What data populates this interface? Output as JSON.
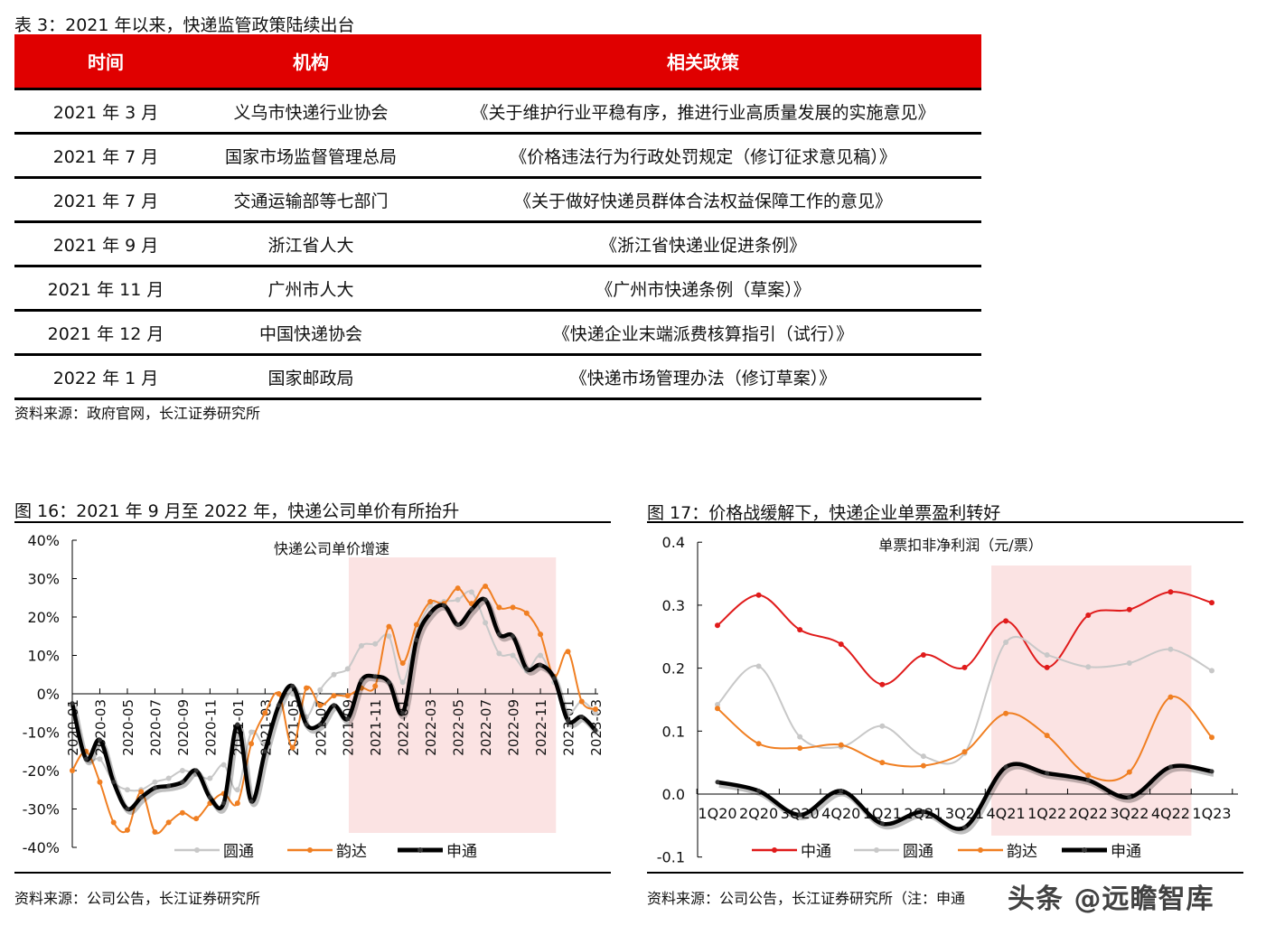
{
  "table": {
    "caption": "表 3：2021 年以来，快递监管政策陆续出台",
    "headers": [
      "时间",
      "机构",
      "相关政策"
    ],
    "rows": [
      {
        "time": "2021 年 3 月",
        "org": "义乌市快递行业协会",
        "policy": "《关于维护行业平稳有序，推进行业高质量发展的实施意见》"
      },
      {
        "time": "2021 年 7 月",
        "org": "国家市场监督管理总局",
        "policy": "《价格违法行为行政处罚规定（修订征求意见稿）》"
      },
      {
        "time": "2021 年 7 月",
        "org": "交通运输部等七部门",
        "policy": "《关于做好快递员群体合法权益保障工作的意见》"
      },
      {
        "time": "2021 年 9 月",
        "org": "浙江省人大",
        "policy": "《浙江省快递业促进条例》"
      },
      {
        "time": "2021 年 11 月",
        "org": "广州市人大",
        "policy": "《广州市快递条例（草案）》"
      },
      {
        "time": "2021 年 12 月",
        "org": "中国快递协会",
        "policy": "《快递企业末端派费核算指引（试行）》"
      },
      {
        "time": "2022 年 1 月",
        "org": "国家邮政局",
        "policy": "《快递市场管理办法（修订草案）》"
      }
    ],
    "source": "资料来源：政府官网，长江证券研究所"
  },
  "figure16": {
    "caption": "图 16：2021 年 9 月至 2022 年，快递公司单价有所抬升",
    "source": "资料来源：公司公告，长江证券研究所"
  },
  "figure17": {
    "caption": "图 17：价格战缓解下，快递企业单票盈利转好",
    "source": "资料来源：公司公告，长江证券研究所（注：申通",
    "watermark": "头条 @远瞻智库"
  },
  "chart_data": [
    {
      "type": "line",
      "title": "快递公司单价增速",
      "xlabel": "",
      "ylabel": "",
      "ylim": [
        -0.4,
        0.4
      ],
      "yticks": [
        "40%",
        "30%",
        "20%",
        "10%",
        "0%",
        "-10%",
        "-20%",
        "-30%",
        "-40%"
      ],
      "x": [
        "2020-01",
        "2020-02",
        "2020-03",
        "2020-04",
        "2020-05",
        "2020-06",
        "2020-07",
        "2020-08",
        "2020-09",
        "2020-10",
        "2020-11",
        "2020-12",
        "2021-01",
        "2021-02",
        "2021-03",
        "2021-04",
        "2021-05",
        "2021-06",
        "2021-07",
        "2021-08",
        "2021-09",
        "2021-10",
        "2021-11",
        "2021-12",
        "2022-01",
        "2022-02",
        "2022-03",
        "2022-04",
        "2022-05",
        "2022-06",
        "2022-07",
        "2022-08",
        "2022-09",
        "2022-10",
        "2022-11",
        "2022-12",
        "2023-01",
        "2023-02",
        "2023-03"
      ],
      "xtick_labels": [
        "2020-01",
        "2020-03",
        "2020-05",
        "2020-07",
        "2020-09",
        "2020-11",
        "2021-01",
        "2021-03",
        "2021-05",
        "2021-07",
        "2021-09",
        "2021-11",
        "2022-01",
        "2022-03",
        "2022-05",
        "2022-07",
        "2022-09",
        "2022-11",
        "2023-01",
        "2023-03"
      ],
      "highlight_range": [
        "2021-10",
        "2022-12"
      ],
      "legend_position": "bottom",
      "series": [
        {
          "name": "圆通",
          "color": "#c8c8c8",
          "values": [
            -0.03,
            -0.17,
            -0.17,
            -0.23,
            -0.25,
            -0.25,
            -0.23,
            -0.22,
            -0.2,
            -0.21,
            -0.22,
            -0.185,
            -0.25,
            -0.1,
            -0.13,
            -0.03,
            0.0,
            -0.06,
            0.01,
            0.05,
            0.065,
            0.125,
            0.13,
            0.15,
            0.03,
            0.16,
            0.23,
            0.24,
            0.245,
            0.265,
            0.185,
            0.105,
            0.1,
            0.06,
            0.1,
            0.03,
            -0.05,
            -0.02,
            -0.05
          ]
        },
        {
          "name": "韵达",
          "color": "#f07f22",
          "values": [
            -0.2,
            -0.15,
            -0.23,
            -0.335,
            -0.355,
            -0.255,
            -0.36,
            -0.335,
            -0.31,
            -0.325,
            -0.285,
            -0.26,
            -0.285,
            -0.13,
            -0.05,
            0.0,
            -0.14,
            0.015,
            -0.03,
            -0.005,
            -0.005,
            0.015,
            0.02,
            0.175,
            0.08,
            0.18,
            0.24,
            0.235,
            0.275,
            0.235,
            0.28,
            0.225,
            0.225,
            0.21,
            0.155,
            0.045,
            0.11,
            -0.02,
            -0.04
          ]
        },
        {
          "name": "申通",
          "color": "#000000",
          "values": [
            -0.025,
            -0.17,
            -0.12,
            -0.23,
            -0.3,
            -0.27,
            -0.245,
            -0.24,
            -0.23,
            -0.2,
            -0.27,
            -0.285,
            -0.08,
            -0.28,
            -0.15,
            -0.03,
            0.02,
            -0.08,
            -0.08,
            -0.03,
            -0.065,
            0.035,
            0.045,
            0.03,
            -0.05,
            0.14,
            0.21,
            0.23,
            0.18,
            0.22,
            0.245,
            0.155,
            0.15,
            0.065,
            0.075,
            0.04,
            -0.07,
            -0.06,
            -0.095
          ]
        }
      ]
    },
    {
      "type": "line",
      "title": "单票扣非净利润（元/票）",
      "xlabel": "",
      "ylabel": "",
      "ylim": [
        -0.1,
        0.4
      ],
      "yticks": [
        "0.4",
        "0.3",
        "0.2",
        "0.1",
        "0.0",
        "-0.1"
      ],
      "x": [
        "1Q20",
        "2Q20",
        "3Q20",
        "4Q20",
        "1Q21",
        "2Q21",
        "3Q21",
        "4Q21",
        "1Q22",
        "2Q22",
        "3Q22",
        "4Q22",
        "1Q23"
      ],
      "highlight_range": [
        "4Q21",
        "4Q22"
      ],
      "legend_position": "bottom",
      "series": [
        {
          "name": "中通",
          "color": "#e01b1b",
          "values": [
            0.268,
            0.316,
            0.261,
            0.238,
            0.174,
            0.221,
            0.201,
            0.275,
            0.201,
            0.284,
            0.293,
            0.321,
            0.304
          ]
        },
        {
          "name": "圆通",
          "color": "#c8c8c8",
          "values": [
            0.142,
            0.203,
            0.091,
            0.075,
            0.108,
            0.06,
            0.065,
            0.241,
            0.221,
            0.202,
            0.208,
            0.23,
            0.196
          ]
        },
        {
          "name": "韵达",
          "color": "#f07f22",
          "values": [
            0.136,
            0.08,
            0.073,
            0.078,
            0.05,
            0.045,
            0.067,
            0.128,
            0.093,
            0.03,
            0.035,
            0.154,
            0.09
          ]
        },
        {
          "name": "申通",
          "color": "#000000",
          "values": [
            0.019,
            0.005,
            -0.033,
            0.005,
            -0.047,
            -0.028,
            -0.053,
            0.043,
            0.033,
            0.022,
            -0.005,
            0.043,
            0.036
          ]
        }
      ]
    }
  ]
}
